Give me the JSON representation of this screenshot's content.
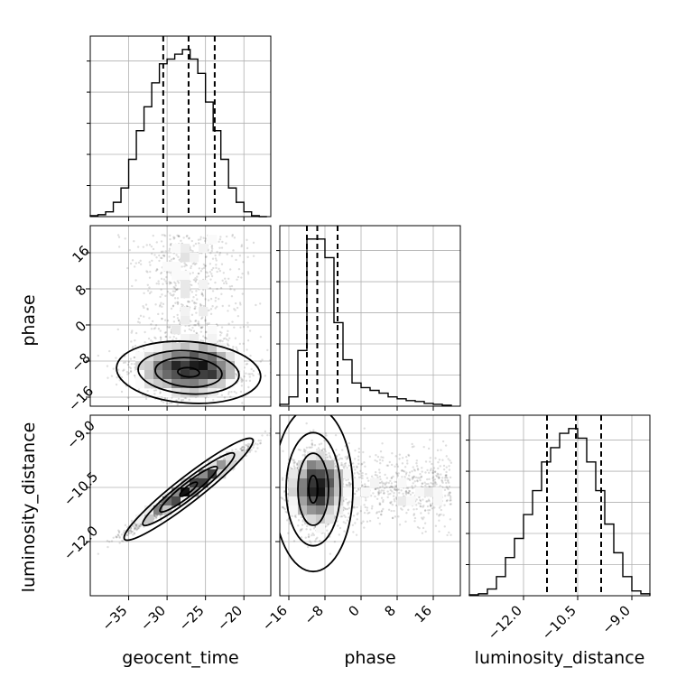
{
  "chart_data": {
    "type": "corner",
    "parameters": [
      "geocent_time",
      "phase",
      "luminosity_distance"
    ],
    "ranges": {
      "geocent_time": [
        -40,
        -16.5
      ],
      "phase": [
        -18,
        22
      ],
      "luminosity_distance": [
        -13.5,
        -8.5
      ]
    },
    "ticks": {
      "geocent_time": [
        -35,
        -30,
        -25,
        -20
      ],
      "phase": [
        -16,
        -8,
        0,
        8,
        16
      ],
      "luminosity_distance": [
        -12.0,
        -10.5,
        -9.0
      ]
    },
    "tick_labels": {
      "geocent_time": [
        "−35",
        "−30",
        "−25",
        "−20"
      ],
      "phase": [
        "−16",
        "−8",
        "0",
        "8",
        "16"
      ],
      "luminosity_distance": [
        "−12.0",
        "−10.5",
        "−9.0"
      ]
    },
    "quantiles": {
      "geocent_time": [
        -30.5,
        -27.2,
        -23.8
      ],
      "phase": [
        -12.0,
        -9.7,
        -5.2
      ],
      "luminosity_distance": [
        -11.35,
        -10.55,
        -9.85
      ]
    },
    "histograms": {
      "geocent_time": {
        "edges": [
          -40,
          -39,
          -38,
          -37,
          -36,
          -35,
          -34,
          -33,
          -32,
          -31,
          -30,
          -29,
          -28,
          -27,
          -26,
          -25,
          -24,
          -23,
          -22,
          -21,
          -20,
          -19,
          -18,
          -17
        ],
        "counts": [
          1,
          2,
          5,
          15,
          30,
          60,
          90,
          115,
          140,
          160,
          165,
          170,
          175,
          165,
          150,
          120,
          90,
          60,
          30,
          15,
          5,
          1,
          0
        ]
      },
      "phase": {
        "edges": [
          -18,
          -16,
          -14,
          -12,
          -10,
          -8,
          -6,
          -4,
          -2,
          0,
          2,
          4,
          6,
          8,
          10,
          12,
          14,
          16,
          18,
          20
        ],
        "counts": [
          2,
          10,
          60,
          180,
          180,
          160,
          90,
          50,
          25,
          20,
          17,
          14,
          10,
          8,
          6,
          5,
          3,
          2,
          1
        ]
      },
      "luminosity_distance": {
        "edges": [
          -13.5,
          -13.25,
          -13.0,
          -12.75,
          -12.5,
          -12.25,
          -12.0,
          -11.75,
          -11.5,
          -11.25,
          -11.0,
          -10.75,
          -10.5,
          -10.25,
          -10.0,
          -9.75,
          -9.5,
          -9.25,
          -9.0,
          -8.75,
          -8.5
        ],
        "counts": [
          1,
          2,
          7,
          20,
          40,
          60,
          85,
          110,
          140,
          155,
          170,
          175,
          165,
          140,
          110,
          75,
          45,
          20,
          5,
          2
        ]
      }
    },
    "correlations": {
      "phase|geocent_time": 0.1,
      "luminosity_distance|geocent_time": 0.98,
      "luminosity_distance|phase": 0.1
    }
  }
}
